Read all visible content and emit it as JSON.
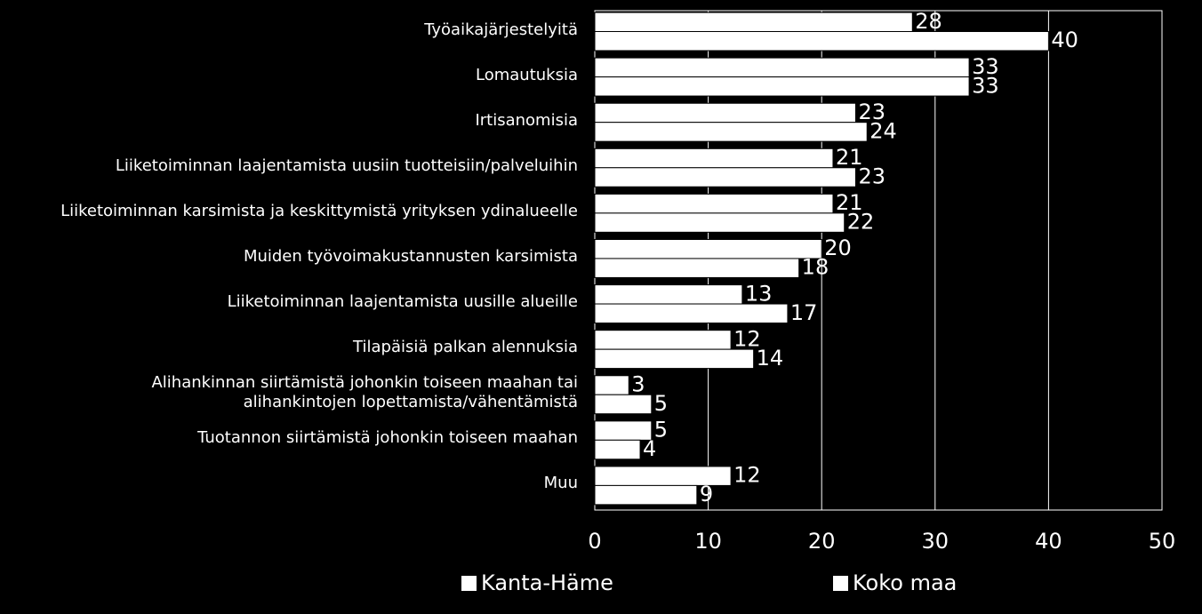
{
  "chart_data": {
    "type": "bar",
    "orientation": "horizontal",
    "categories": [
      "Työaikajärjestelyitä",
      "Lomautuksia",
      "Irtisanomisia",
      "Liiketoiminnan laajentamista uusiin tuotteisiin/palveluihin",
      "Liiketoiminnan karsimista ja keskittymistä yrityksen ydinalueelle",
      "Muiden työvoimakustannusten karsimista",
      "Liiketoiminnan laajentamista uusille alueille",
      "Tilapäisiä palkan alennuksia",
      "Alihankinnan siirtämistä johonkin toiseen maahan tai\nalihankintojen lopettamista/vähentämistä",
      "Tuotannon siirtämistä johonkin toiseen maahan",
      "Muu"
    ],
    "series": [
      {
        "name": "Kanta-Häme",
        "color": "#ffffff",
        "values": [
          28,
          33,
          23,
          21,
          21,
          20,
          13,
          12,
          3,
          5,
          12
        ]
      },
      {
        "name": "Koko maa",
        "color": "#ffffff",
        "values": [
          40,
          33,
          24,
          23,
          22,
          18,
          17,
          14,
          5,
          4,
          9
        ]
      }
    ],
    "xlim": [
      0,
      50
    ],
    "xticks": [
      0,
      10,
      20,
      30,
      40,
      50
    ],
    "grid": true,
    "legend": "bottom"
  }
}
